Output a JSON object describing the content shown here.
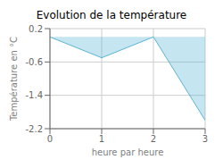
{
  "chart_data": {
    "type": "area",
    "title": "Evolution de la température",
    "xlabel": "heure par heure",
    "ylabel": "Température en °C",
    "x": [
      0,
      1,
      2,
      3
    ],
    "values": [
      0.0,
      -0.5,
      0.0,
      -2.0
    ],
    "color": "#5ab4d4",
    "xlim": [
      0,
      3
    ],
    "ylim": [
      -2.2,
      0.2
    ],
    "xticks": [
      0,
      1,
      2,
      3
    ],
    "yticks": [
      0.2,
      -0.6,
      -1.4,
      -2.2
    ],
    "grid": true
  }
}
